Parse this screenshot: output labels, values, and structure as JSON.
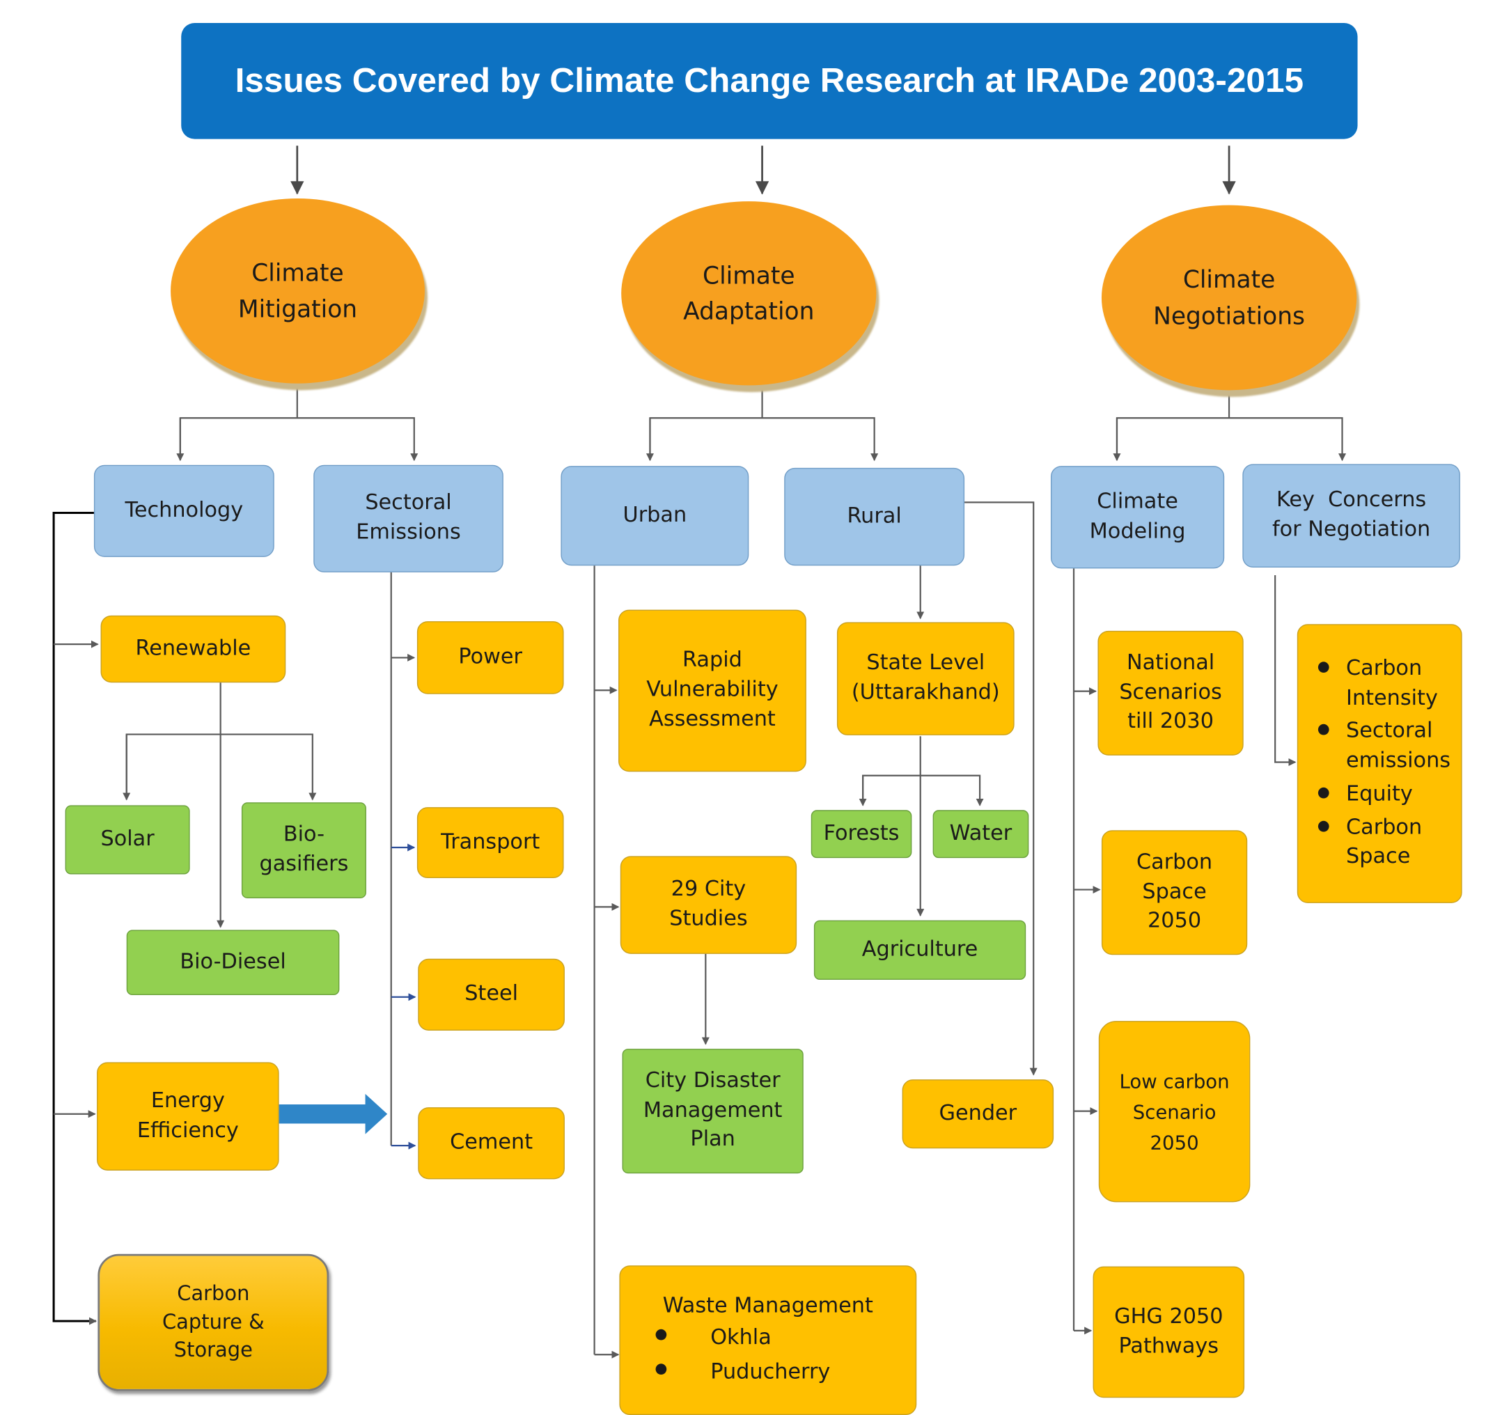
{
  "title": "Issues Covered by Climate Change Research at IRADe 2003-2015",
  "pillars": {
    "mitigation": "Climate Mitigation",
    "adaptation": "Climate Adaptation",
    "negotiations": "Climate Negotiations"
  },
  "mitigation": {
    "technology": "Technology",
    "sectoral": "Sectoral Emissions",
    "renewable": "Renewable",
    "solar": "Solar",
    "biogasifiers": "Bio-gasifiers",
    "biodiesel": "Bio-Diesel",
    "energy_efficiency": "Energy Efficiency",
    "ccs": "Carbon Capture & Storage",
    "power": "Power",
    "transport": "Transport",
    "steel": "Steel",
    "cement": "Cement"
  },
  "adaptation": {
    "urban": "Urban",
    "rural": "Rural",
    "rapid_vulnerability": "Rapid Vulnerability Assessment",
    "city_studies": "29 City Studies",
    "city_disaster": "City Disaster Management Plan",
    "waste_management": {
      "heading": "Waste Management",
      "items": [
        "Okhla",
        "Puducherry"
      ]
    },
    "state_level": "State Level (Uttarakhand)",
    "forests": "Forests",
    "water": "Water",
    "agriculture": "Agriculture",
    "gender": "Gender"
  },
  "negotiations": {
    "climate_modeling": "Climate Modeling",
    "key_concerns": "Key  Concerns for Negotiation",
    "national_scenarios": "National Scenarios till 2030",
    "carbon_space": "Carbon Space 2050",
    "low_carbon": "Low carbon Scenario 2050",
    "ghg_pathways": "GHG 2050 Pathways",
    "concerns_list": [
      "Carbon Intensity",
      "Sectoral emissions",
      "Equity",
      "Carbon Space"
    ]
  },
  "colors": {
    "title_bar": "#0d72c2",
    "oval": "#f7a01f",
    "blue_box": "#9fc5e8",
    "orange_box": "#ffc000",
    "green_box": "#92d050",
    "connector": "#595959",
    "block_arrow": "#2f86c8"
  }
}
